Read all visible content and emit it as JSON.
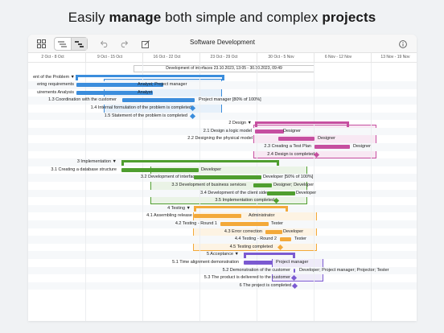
{
  "headline": {
    "part1": "Easily ",
    "bold1": "manage",
    "part2": " both simple and complex ",
    "bold2": "projects"
  },
  "toolbar": {
    "title": "Software Development",
    "grid_icon": "grid-icon",
    "undo_icon": "undo-icon",
    "redo_icon": "redo-icon",
    "edit_icon": "edit-icon",
    "info_icon": "info-icon"
  },
  "dates": [
    "2 Oct - 8 Oct",
    "9 Oct - 15 Oct",
    "16 Oct - 22 Oct",
    "23 Oct - 29 Oct",
    "30 Oct - 5 Nov",
    "6 Nov - 12 Nov",
    "13 Nov - 19 Nov"
  ],
  "banner": "Development of interfaces  23.10.2023, 13:05 - 30.10.2023, 09:49",
  "tasks": [
    {
      "label": "ent of the Problem ▼",
      "resource": ""
    },
    {
      "label": "ering requirements",
      "resource": "Analyst; Project manager"
    },
    {
      "label": "uirements Analysis",
      "resource": "Analyst"
    },
    {
      "label": "1.3  Coordination with the customer",
      "resource": "Project manager [80% of 100%]"
    },
    {
      "label": "1.4  Internal formulation of the problem is completed",
      "resource": ""
    },
    {
      "label": "1.5  Statement of the problem is completed",
      "resource": ""
    },
    {
      "label": "2  Design ▼",
      "resource": ""
    },
    {
      "label": "2.1  Design a logic model",
      "resource": "Designer"
    },
    {
      "label": "2.2  Designing the physical model",
      "resource": "Designer"
    },
    {
      "label": "2.3  Creating a Test Plan",
      "resource": "Designer"
    },
    {
      "label": "2.4  Design is completed",
      "resource": ""
    },
    {
      "label": "3  Implementation ▼",
      "resource": ""
    },
    {
      "label": "3.1  Creating a database structure",
      "resource": "Developer"
    },
    {
      "label": "3.2  Development of interfaces",
      "resource": "Developer [50% of 100%]"
    },
    {
      "label": "3.3  Development of business services",
      "resource": "Designer; Developer"
    },
    {
      "label": "3.4  Development of the client side",
      "resource": "Developer"
    },
    {
      "label": "3.5  Implementation completed",
      "resource": ""
    },
    {
      "label": "4  Testing ▼",
      "resource": ""
    },
    {
      "label": "4.1  Assembling release",
      "resource": "Administrator"
    },
    {
      "label": "4.2  Testing - Round 1",
      "resource": "Tester"
    },
    {
      "label": "4.3  Error correction",
      "resource": "Developer"
    },
    {
      "label": "4.4  Testing - Round 2",
      "resource": "Tester"
    },
    {
      "label": "4.5  Testing completed",
      "resource": ""
    },
    {
      "label": "5  Acceptance ▼",
      "resource": ""
    },
    {
      "label": "5.1  Time alignment demonstration",
      "resource": "Project manager"
    },
    {
      "label": "5.2  Demonstration of the customer",
      "resource": "Developer; Project manager; Projector; Tester"
    },
    {
      "label": "5.3  The product is delivered to the customer",
      "resource": ""
    },
    {
      "label": "6  The project is completed",
      "resource": ""
    }
  ],
  "colors": {
    "phase1": "#3b8ddc",
    "phase2": "#c64fa0",
    "phase3": "#4f9e2f",
    "phase4": "#f3a93a",
    "phase5": "#7b5ad1",
    "accent": "#3d6fd6"
  },
  "fab_label": "+"
}
